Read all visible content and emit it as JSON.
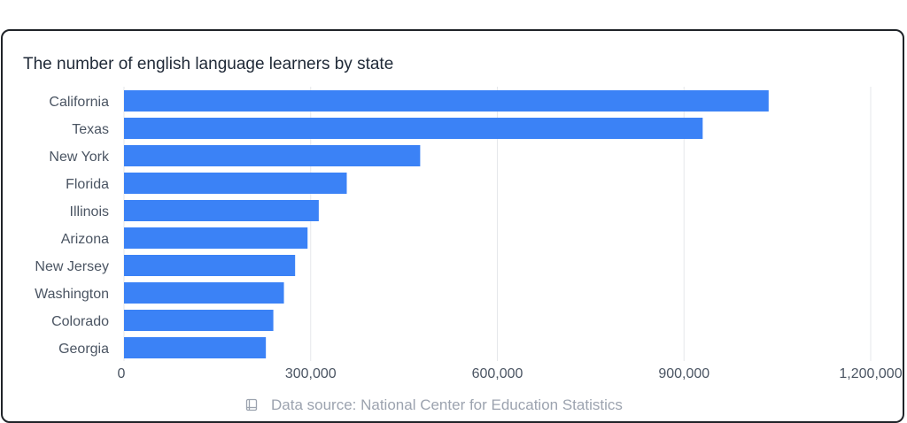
{
  "chart_data": {
    "type": "bar",
    "orientation": "horizontal",
    "title": "The number of english language learners by state",
    "categories": [
      "California",
      "Texas",
      "New York",
      "Florida",
      "Illinois",
      "Arizona",
      "New Jersey",
      "Washington",
      "Colorado",
      "Georgia"
    ],
    "values": [
      1036000,
      930000,
      476000,
      358000,
      313000,
      295000,
      275000,
      257000,
      240000,
      228000
    ],
    "xlim": [
      0,
      1200000
    ],
    "xticks": [
      0,
      300000,
      600000,
      900000,
      1200000
    ],
    "xtick_labels": [
      "0",
      "300,000",
      "600,000",
      "900,000",
      "1,200,000"
    ],
    "grid": "vertical",
    "legend": "none",
    "bar_color": "#3b82f6",
    "grid_color": "#e5e7eb"
  },
  "source": {
    "icon": "book-icon",
    "text": "Data source: National Center for Education Statistics"
  }
}
